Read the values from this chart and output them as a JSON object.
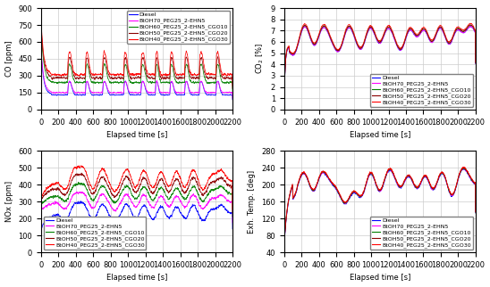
{
  "legend_labels": [
    "Diesel",
    "BtOH70_PEG25_2-EHN5",
    "BtOH60_PEG25_2-EHN5_CGO10",
    "BtOH50_PEG25_2-EHN5_CGO20",
    "BtOH40_PEG25_2-EHN5_CGO30"
  ],
  "colors": [
    "blue",
    "magenta",
    "green",
    "darkred",
    "red"
  ],
  "subplots": [
    {
      "ylabel": "CO [ppm]",
      "xlabel": "Elapsed time [s]",
      "ylim": [
        0,
        900
      ],
      "yticks": [
        0,
        150,
        300,
        450,
        600,
        750,
        900
      ]
    },
    {
      "ylabel": "CO$_2$ [%]",
      "xlabel": "Elapsed time [s]",
      "ylim": [
        0,
        9
      ],
      "yticks": [
        0,
        1,
        2,
        3,
        4,
        5,
        6,
        7,
        8,
        9
      ]
    },
    {
      "ylabel": "NOx [ppm]",
      "xlabel": "Elapsed time [s]",
      "ylim": [
        0,
        600
      ],
      "yticks": [
        0,
        100,
        200,
        300,
        400,
        500,
        600
      ]
    },
    {
      "ylabel": "Exh. Temp. [deg]",
      "xlabel": "Elapsed time [s]",
      "ylim": [
        40,
        280
      ],
      "yticks": [
        40,
        80,
        120,
        160,
        200,
        240,
        280
      ]
    }
  ],
  "xlim": [
    0,
    2200
  ],
  "xticks": [
    0,
    200,
    400,
    600,
    800,
    1000,
    1200,
    1400,
    1600,
    1800,
    2000,
    2200
  ],
  "grid_color": "#cccccc",
  "fontsize_tick": 6,
  "fontsize_label": 6,
  "fontsize_legend": 4.5,
  "legend_locs": [
    "upper right",
    "lower right",
    "lower left",
    "lower right"
  ]
}
